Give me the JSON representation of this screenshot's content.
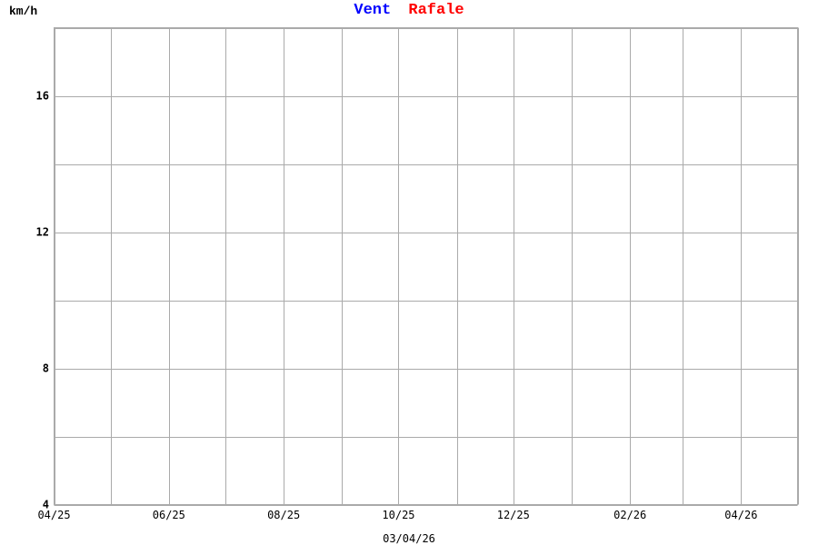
{
  "chart_data": {
    "type": "line",
    "ylabel": "km/h",
    "legend": [
      {
        "name": "Vent",
        "color": "#0000ff"
      },
      {
        "name": "Rafale",
        "color": "#ff0000"
      }
    ],
    "legend_placement": "top-center",
    "xlabel": "03/04/26",
    "xlim": [
      "2025-04-01",
      "2026-05-01"
    ],
    "ylim": [
      4,
      18
    ],
    "grid": true,
    "x_gridlines": "monthly",
    "y_grid_step": 2,
    "x_tick_labels": [
      "04/25",
      "06/25",
      "08/25",
      "10/25",
      "12/25",
      "02/26",
      "04/26"
    ],
    "x_tick_dates": [
      "2025-04-01",
      "2025-06-01",
      "2025-08-01",
      "2025-10-01",
      "2025-12-01",
      "2026-02-01",
      "2026-04-01"
    ],
    "y_tick_labels": [
      "4",
      "8",
      "12",
      "16"
    ],
    "y_tick_values": [
      4,
      8,
      12,
      16
    ],
    "series": [
      {
        "name": "Vent",
        "color": "#0000ff",
        "points": []
      },
      {
        "name": "Rafale",
        "color": "#ff0000",
        "points": []
      }
    ]
  }
}
